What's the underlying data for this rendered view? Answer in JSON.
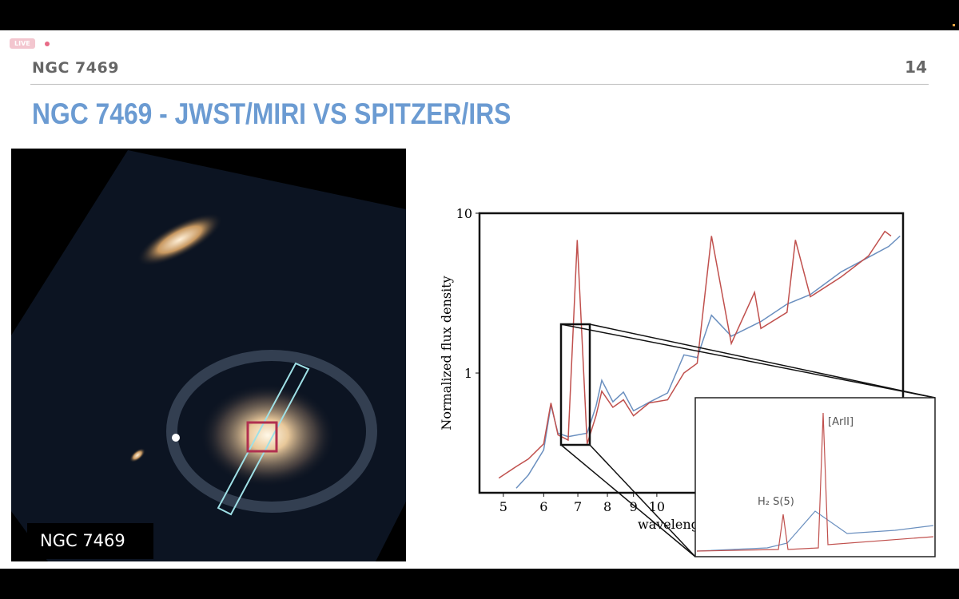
{
  "header": {
    "badge": "LIVE",
    "section": "NGC 7469",
    "page": "14"
  },
  "slide": {
    "title": "NGC 7469 - JWST/MIRI VS SPITZER/IRS",
    "image_caption": "NGC 7469"
  },
  "chart_data": {
    "type": "line",
    "ylabel": "Normalized flux density",
    "xlabel": "wavelength",
    "xlog": true,
    "ylog": true,
    "xlim": [
      4.49,
      30.4
    ],
    "ylim": [
      0.178,
      10
    ],
    "xticks": [
      5,
      6,
      7,
      8,
      9,
      10
    ],
    "yticks": [
      1,
      10
    ],
    "series": [
      {
        "name": "Spitzer/IRS",
        "color": "#6a8fbf",
        "x": [
          5.3,
          5.6,
          6.0,
          6.2,
          6.4,
          6.7,
          7.3,
          7.6,
          7.8,
          8.2,
          8.6,
          9.0,
          9.7,
          10.5,
          11.3,
          12.0,
          12.8,
          14,
          16,
          18,
          20,
          23,
          26,
          28.5,
          30
        ],
        "values": [
          0.19,
          0.23,
          0.33,
          0.63,
          0.42,
          0.4,
          0.42,
          0.62,
          0.9,
          0.66,
          0.76,
          0.58,
          0.66,
          0.75,
          1.3,
          1.25,
          2.3,
          1.7,
          2.1,
          2.7,
          3.1,
          4.3,
          5.3,
          6.2,
          7.2
        ]
      },
      {
        "name": "JWST/MIRI",
        "color": "#c0504d",
        "x": [
          4.9,
          5.3,
          5.6,
          6.0,
          6.2,
          6.4,
          6.7,
          6.98,
          7.3,
          7.6,
          7.8,
          8.2,
          8.6,
          9.0,
          9.66,
          10.5,
          11.3,
          12.0,
          12.8,
          14,
          15.55,
          16,
          18,
          18.7,
          20,
          23,
          26,
          28,
          28.8
        ],
        "values": [
          0.22,
          0.26,
          0.29,
          0.36,
          0.65,
          0.41,
          0.38,
          6.8,
          0.36,
          0.54,
          0.77,
          0.61,
          0.68,
          0.54,
          0.65,
          0.68,
          1.0,
          1.15,
          7.2,
          1.53,
          3.2,
          1.9,
          2.4,
          6.8,
          3.0,
          4.0,
          5.4,
          7.7,
          7.2
        ]
      }
    ],
    "inset_labels": [
      "[ArII]",
      "H₂ S(5)"
    ]
  }
}
